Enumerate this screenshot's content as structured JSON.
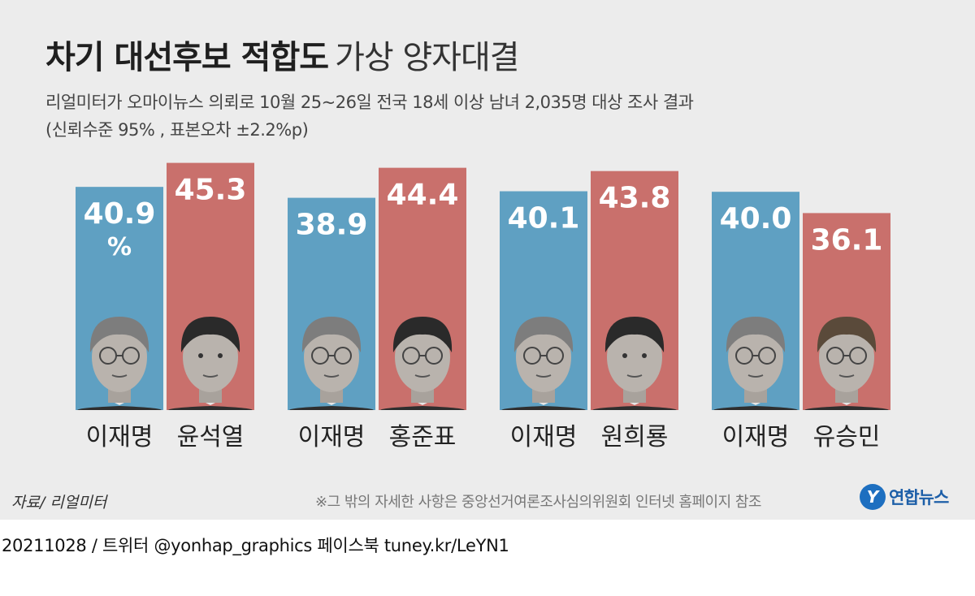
{
  "title": {
    "main": "차기 대선후보 적합도",
    "sub": "가상 양자대결"
  },
  "subtitle": {
    "line1": "리얼미터가 오마이뉴스 의뢰로 10월 25~26일 전국 18세 이상 남녀 2,035명 대상 조사 결과",
    "line2": "(신뢰수준 95% , 표본오차 ±2.2%p)"
  },
  "source": "자료/ 리얼미터",
  "note": "※그 밖의 자세한 사항은 중앙선거여론조사심의위원회 인터넷 홈페이지 참조",
  "logo": {
    "mark": "Y",
    "text": "연합뉴스"
  },
  "footer": "20211028 / 트위터 @yonhap_graphics  페이스북 tuney.kr/LeYN1",
  "colors": {
    "blue": "#5fa0c2",
    "red": "#c9706c",
    "background": "#ececec"
  },
  "chart_data": {
    "type": "bar",
    "unit": "%",
    "groups": [
      {
        "bars": [
          {
            "name": "이재명",
            "value": 40.9,
            "color": "blue"
          },
          {
            "name": "윤석열",
            "value": 45.3,
            "color": "red"
          }
        ]
      },
      {
        "bars": [
          {
            "name": "이재명",
            "value": 38.9,
            "color": "blue"
          },
          {
            "name": "홍준표",
            "value": 44.4,
            "color": "red"
          }
        ]
      },
      {
        "bars": [
          {
            "name": "이재명",
            "value": 40.1,
            "color": "blue"
          },
          {
            "name": "원희룡",
            "value": 43.8,
            "color": "red"
          }
        ]
      },
      {
        "bars": [
          {
            "name": "이재명",
            "value": 40.0,
            "color": "blue"
          },
          {
            "name": "유승민",
            "value": 36.1,
            "color": "red"
          }
        ]
      }
    ]
  }
}
